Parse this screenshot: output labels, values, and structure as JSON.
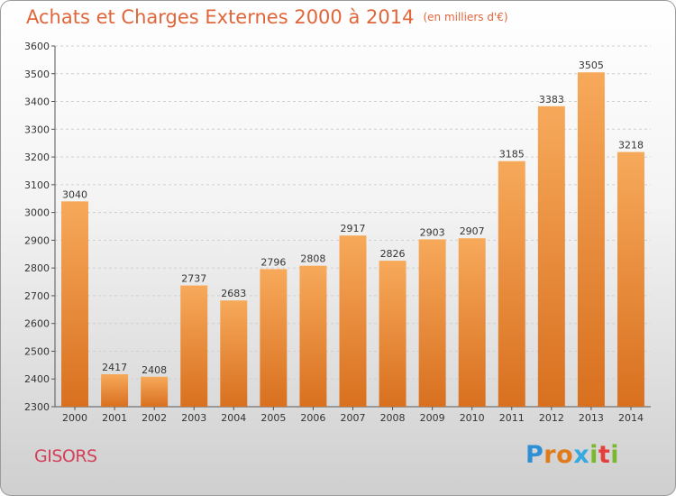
{
  "title": "Achats et Charges Externes 2000 à 2014",
  "unit_note": "(en milliers d'€)",
  "city": "GISORS",
  "logo": {
    "text": "Proxiti",
    "letters": [
      "P",
      "r",
      "o",
      "x",
      "i",
      "t",
      "i"
    ],
    "letter_colors": [
      "#2e8fd4",
      "#e07b1c",
      "#e07b1c",
      "#36a9e1",
      "#7cb82f",
      "#e63d3d",
      "#7cb82f"
    ]
  },
  "colors": {
    "bar_top": "#f7a95a",
    "bar_bottom": "#d8701f",
    "title": "#e0663a",
    "city": "#d4405a",
    "grid": "#d0d0d0"
  },
  "chart_data": {
    "type": "bar",
    "title": "Achats et Charges Externes 2000 à 2014",
    "subtitle": "(en milliers d'€)",
    "categories": [
      "2000",
      "2001",
      "2002",
      "2003",
      "2004",
      "2005",
      "2006",
      "2007",
      "2008",
      "2009",
      "2010",
      "2011",
      "2012",
      "2013",
      "2014"
    ],
    "values": [
      3040,
      2417,
      2408,
      2737,
      2683,
      2796,
      2808,
      2917,
      2826,
      2903,
      2907,
      3185,
      3383,
      3505,
      3218
    ],
    "ylim": [
      2300,
      3600
    ],
    "yticks": [
      2300,
      2400,
      2500,
      2600,
      2700,
      2800,
      2900,
      3000,
      3100,
      3200,
      3300,
      3400,
      3500,
      3600
    ],
    "grid": true,
    "data_labels": true
  }
}
